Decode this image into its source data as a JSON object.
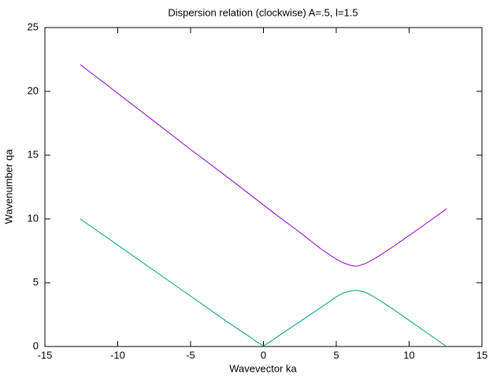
{
  "chart_data": {
    "type": "line",
    "title": "Dispersion relation (clockwise) A=.5, l=1.5",
    "x_label": "Wavevector ka",
    "y_label": "Wavenumber qa",
    "x": [
      -12.57,
      -10,
      -7.5,
      -5,
      -2.5,
      -1,
      -0.5,
      0,
      0.5,
      1,
      2.5,
      4,
      5,
      5.5,
      6,
      6.28,
      6.5,
      7,
      7.5,
      8,
      9,
      10,
      11,
      12.57
    ],
    "series": [
      {
        "color": "#9400d3",
        "values": [
          22.1,
          19.85,
          17.65,
          15.45,
          13.3,
          11.98,
          11.54,
          11.1,
          10.66,
          10.22,
          8.95,
          7.6,
          6.85,
          6.55,
          6.35,
          6.3,
          6.32,
          6.5,
          6.8,
          7.15,
          7.9,
          8.7,
          9.5,
          10.8
        ]
      },
      {
        "color": "#009e73",
        "values": [
          10.0,
          7.95,
          5.95,
          3.95,
          1.95,
          0.8,
          0.4,
          0.05,
          0.4,
          0.8,
          1.95,
          3.1,
          3.9,
          4.2,
          4.35,
          4.4,
          4.38,
          4.25,
          3.95,
          3.6,
          2.85,
          2.05,
          1.25,
          0
        ]
      }
    ],
    "xlim": [
      -15,
      15
    ],
    "xticks": [
      -15,
      -10,
      -5,
      0,
      5,
      10,
      15
    ],
    "ylim": [
      0,
      25
    ],
    "yticks": [
      0,
      5,
      10,
      15,
      20,
      25
    ],
    "grid": false
  }
}
